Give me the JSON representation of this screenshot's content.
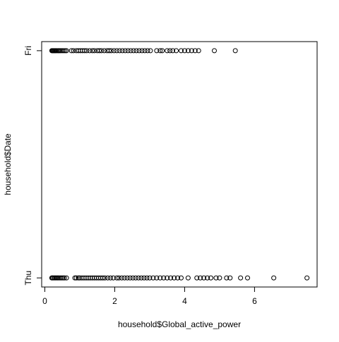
{
  "chart_data": {
    "type": "scatter",
    "xlabel": "household$Global_active_power",
    "ylabel": "household$Date",
    "xlim": [
      -0.09,
      7.79
    ],
    "xticks": [
      0,
      2,
      4,
      6
    ],
    "ylim": [
      0.96,
      2.04
    ],
    "yticks": [
      {
        "value": 1,
        "label": "Thu"
      },
      {
        "value": 2,
        "label": "Fri"
      }
    ],
    "color": "#000000",
    "series": [
      {
        "y": 2,
        "x": [
          0.2,
          0.22,
          0.24,
          0.26,
          0.28,
          0.3,
          0.32,
          0.35,
          0.38,
          0.4,
          0.43,
          0.46,
          0.5,
          0.54,
          0.58,
          0.62,
          0.76,
          0.82,
          0.9,
          0.96,
          1.02,
          1.08,
          1.14,
          1.2,
          1.28,
          1.36,
          1.42,
          1.5,
          1.56,
          1.62,
          1.7,
          1.78,
          1.84,
          1.9,
          1.98,
          2.06,
          2.14,
          2.22,
          2.3,
          2.38,
          2.46,
          2.54,
          2.62,
          2.7,
          2.78,
          2.86,
          2.94,
          3.02,
          3.2,
          3.3,
          3.36,
          3.5,
          3.58,
          3.66,
          3.76,
          3.9,
          4.0,
          4.1,
          4.2,
          4.3,
          4.4,
          4.85,
          5.45
        ]
      },
      {
        "y": 1,
        "x": [
          0.2,
          0.22,
          0.25,
          0.28,
          0.31,
          0.34,
          0.37,
          0.4,
          0.44,
          0.48,
          0.52,
          0.56,
          0.62,
          0.86,
          0.9,
          0.96,
          1.0,
          1.06,
          1.12,
          1.18,
          1.24,
          1.3,
          1.36,
          1.42,
          1.48,
          1.54,
          1.6,
          1.66,
          1.72,
          1.8,
          1.88,
          1.96,
          2.06,
          2.12,
          2.2,
          2.28,
          2.36,
          2.44,
          2.52,
          2.6,
          2.68,
          2.76,
          2.84,
          2.92,
          3.0,
          3.1,
          3.2,
          3.3,
          3.4,
          3.5,
          3.6,
          3.7,
          3.8,
          3.9,
          4.1,
          4.35,
          4.45,
          4.55,
          4.65,
          4.75,
          4.9,
          5.0,
          5.2,
          5.3,
          5.6,
          5.8,
          6.55,
          7.5
        ]
      }
    ]
  }
}
